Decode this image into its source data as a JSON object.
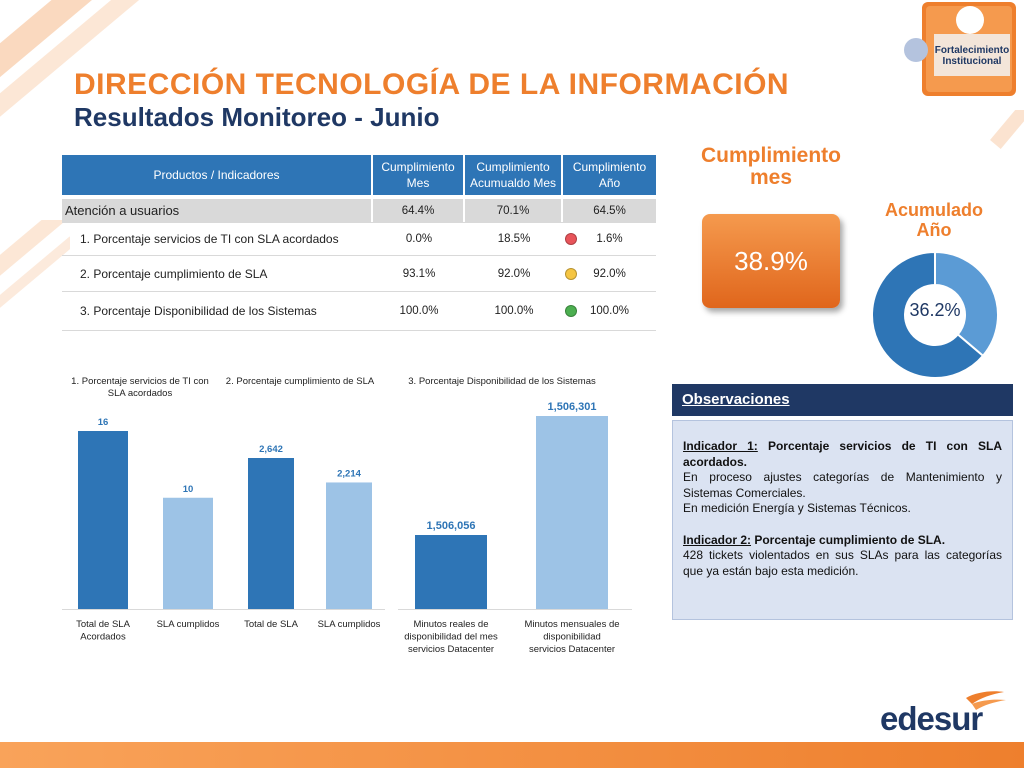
{
  "header": {
    "title": "DIRECCIÓN TECNOLOGÍA DE LA INFORMACIÓN",
    "subtitle": "Resultados Monitoreo - Junio",
    "badge_line1": "Fortalecimiento",
    "badge_line2": "Institucional"
  },
  "table": {
    "headers": [
      "Productos / Indicadores",
      "Cumplimiento Mes",
      "Cumplimiento Acumualdo Mes",
      "Cumplimiento Año"
    ],
    "group": {
      "name": "Atención a usuarios",
      "mes": "64.4%",
      "acumulado": "70.1%",
      "anio": "64.5%"
    },
    "rows": [
      {
        "name": "1. Porcentaje servicios de TI con SLA acordados",
        "mes": "0.0%",
        "acumulado": "18.5%",
        "anio": "1.6%",
        "status_color": "#e8545a"
      },
      {
        "name": "2. Porcentaje cumplimiento de SLA",
        "mes": "93.1%",
        "acumulado": "92.0%",
        "anio": "92.0%",
        "status_color": "#f5c542"
      },
      {
        "name": "3. Porcentaje Disponibilidad de los Sistemas",
        "mes": "100.0%",
        "acumulado": "100.0%",
        "anio": "100.0%",
        "status_color": "#4caf50"
      }
    ]
  },
  "kpi": {
    "mes_label_1": "Cumplimiento",
    "mes_label_2": "mes",
    "mes_value": "38.9%",
    "anio_label_1": "Acumulado",
    "anio_label_2": "Año",
    "anio_value": "36.2%",
    "anio_fraction": 0.362
  },
  "observaciones": {
    "title": "Observaciones",
    "ind1_label": "Indicador 1:",
    "ind1_title": " Porcentaje servicios de TI con SLA acordados.",
    "ind1_line1": "En proceso ajustes categorías de Mantenimiento y Sistemas Comerciales.",
    "ind1_line2": "En medición Energía y Sistemas Técnicos.",
    "ind2_label": "Indicador 2:",
    "ind2_title": " Porcentaje cumplimiento de SLA.",
    "ind2_line1": "428 tickets violentados en sus SLAs para las categorías que ya están bajo esta medición."
  },
  "chart_data": [
    {
      "type": "bar",
      "title": "1. Porcentaje servicios de TI con SLA acordados",
      "categories": [
        "Total de SLA Acordados",
        "SLA cumplidos"
      ],
      "values": [
        16,
        10
      ],
      "data_labels": [
        "16",
        "10"
      ],
      "colors": [
        "#2e75b6",
        "#9dc3e6"
      ]
    },
    {
      "type": "bar",
      "title": "2. Porcentaje cumplimiento de SLA",
      "categories": [
        "Total de SLA",
        "SLA cumplidos"
      ],
      "values": [
        2642,
        2214
      ],
      "data_labels": [
        "2,642",
        "2,214"
      ],
      "colors": [
        "#2e75b6",
        "#9dc3e6"
      ]
    },
    {
      "type": "bar",
      "title": "3. Porcentaje Disponibilidad de los Sistemas",
      "categories": [
        "Minutos reales de disponibilidad del mes servicios Datacenter",
        "Minutos mensuales de disponibilidad servicios Datacenter"
      ],
      "values": [
        1506056,
        1506301
      ],
      "data_labels": [
        "1,506,056",
        "1,506,301"
      ],
      "colors": [
        "#2e75b6",
        "#9dc3e6"
      ]
    }
  ],
  "footer": {
    "brand": "edesur"
  }
}
